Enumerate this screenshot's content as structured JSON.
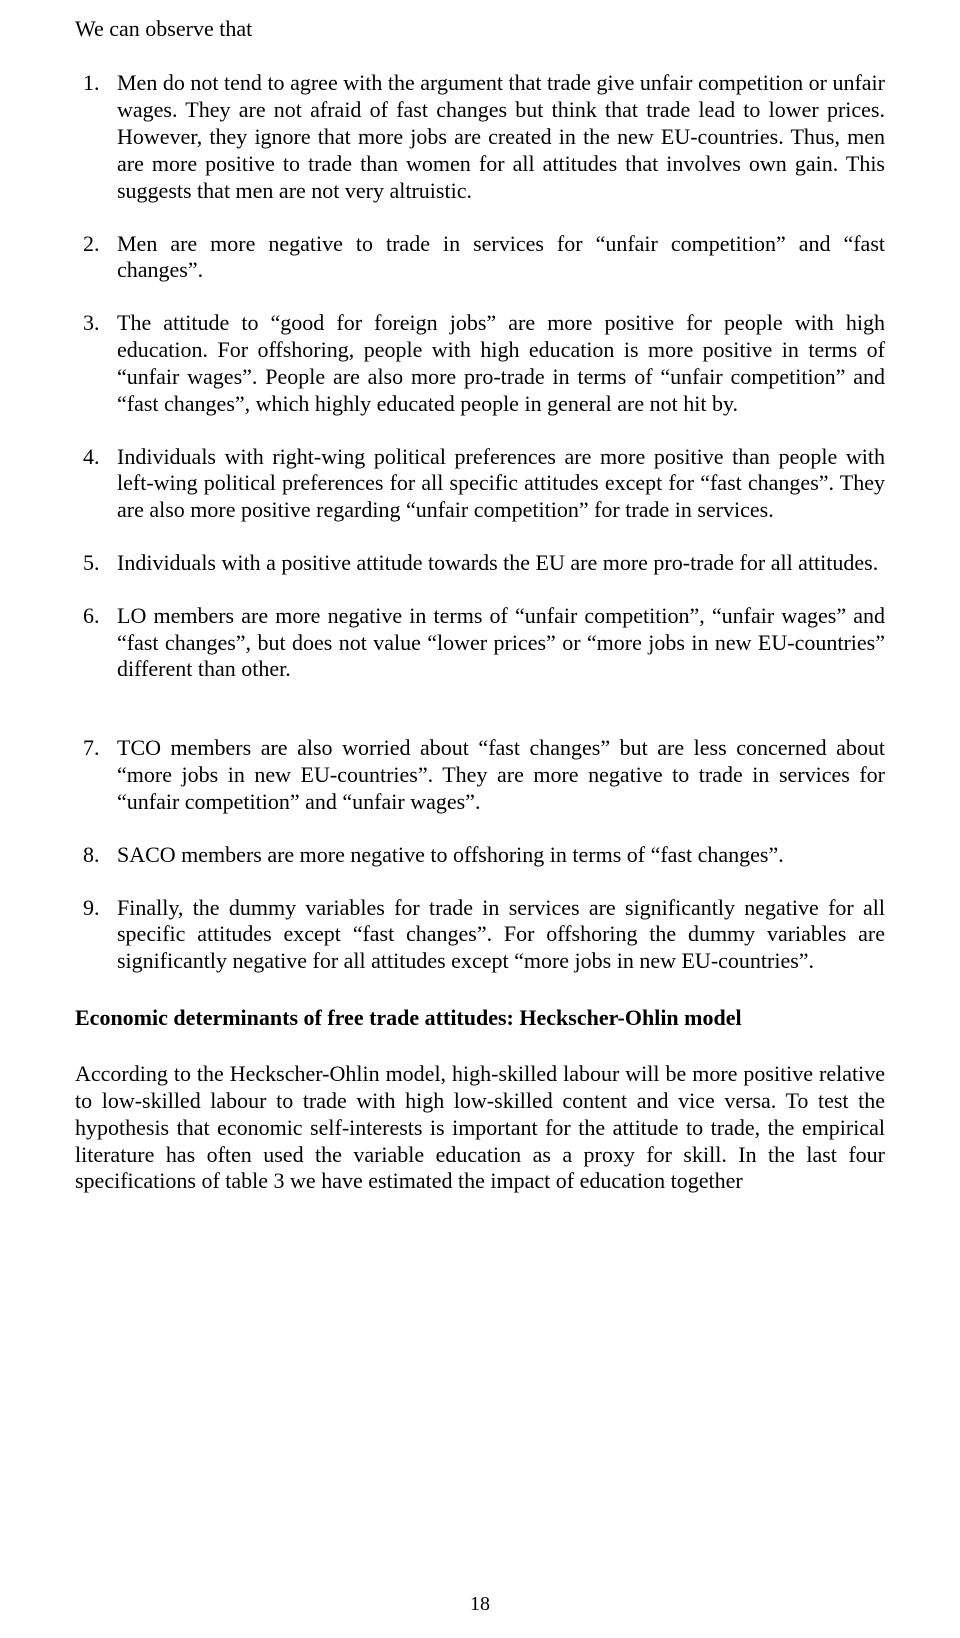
{
  "intro": "We can observe that",
  "items": [
    {
      "num": "1.",
      "text": "Men do not tend to agree with the argument that trade give unfair competition or unfair wages. They are not afraid of fast changes but think that trade lead to lower prices. However, they ignore that more jobs are created in the new EU-countries. Thus, men are more positive to trade than women for all attitudes that involves own gain. This suggests that men are not very altruistic."
    },
    {
      "num": "2.",
      "text": "Men are more negative to trade in services for “unfair competition” and “fast changes”."
    },
    {
      "num": "3.",
      "text": "The attitude to “good for foreign jobs” are more positive for people with high education. For offshoring, people with high education is more positive in terms of “unfair wages”. People are also more pro-trade in terms of “unfair competition” and “fast changes”, which highly educated people in general are not hit by."
    },
    {
      "num": "4.",
      "text": "Individuals with right-wing political preferences are more positive than people with left-wing political preferences for all specific attitudes except for “fast changes”. They are also more positive regarding “unfair competition” for trade in services."
    },
    {
      "num": "5.",
      "text": "Individuals with a positive attitude towards the EU are more pro-trade for all attitudes."
    },
    {
      "num": "6.",
      "text": "LO members are more negative in terms of “unfair competition”, “unfair wages” and “fast changes”, but does not value “lower prices” or “more jobs in new EU-countries” different than other."
    },
    {
      "num": "7.",
      "text": "TCO members are also worried about “fast changes” but are less concerned about “more jobs in new EU-countries”. They are more negative to trade in services for “unfair competition” and “unfair wages”."
    },
    {
      "num": "8.",
      "text": "SACO members are more negative to offshoring in terms of “fast changes”."
    },
    {
      "num": "9.",
      "text": "Finally, the dummy variables for trade in services are significantly negative for all specific attitudes except “fast changes”. For offshoring the dummy variables are significantly negative for all attitudes except “more jobs in new EU-countries”."
    }
  ],
  "heading": "Economic determinants of free trade attitudes: Heckscher-Ohlin model",
  "paragraph": "According to the Heckscher-Ohlin model, high-skilled labour will be more positive relative to low-skilled labour to trade with high low-skilled content and vice versa. To test the hypothesis that economic self-interests is important for the attitude to trade, the empirical literature has often used the variable education as a proxy for skill. In the last four specifications of table 3 we have estimated the impact of education together",
  "pageNumber": "18"
}
